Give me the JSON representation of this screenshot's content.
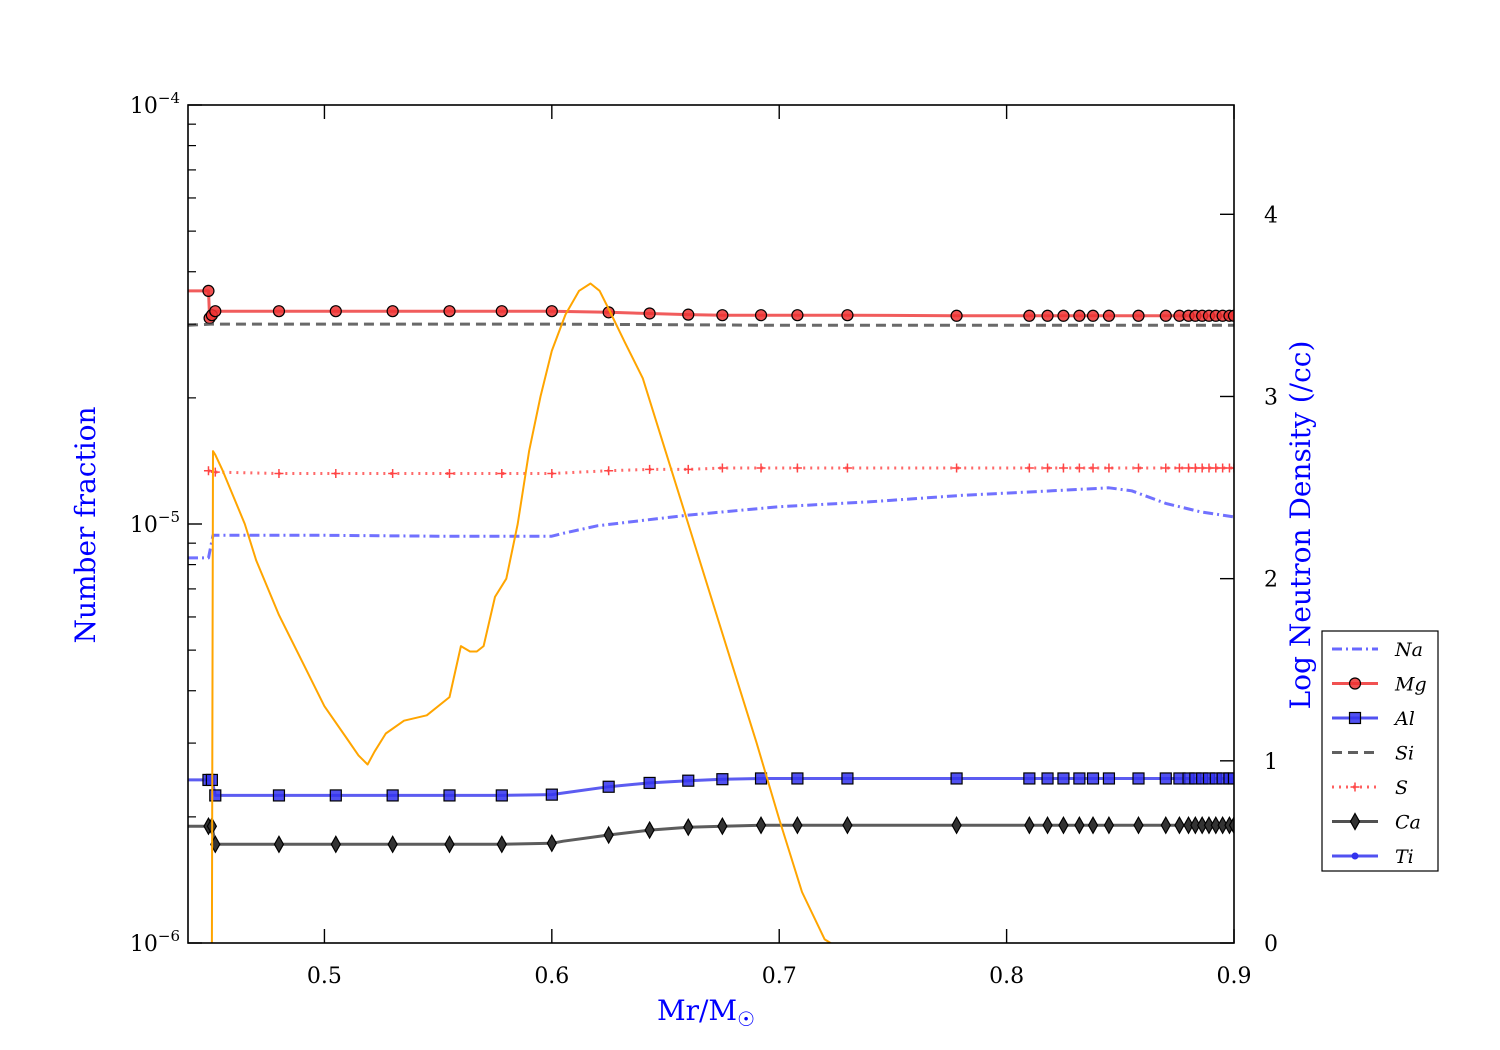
{
  "chart_data": {
    "type": "line",
    "xlabel": "Mr/M",
    "xlabel_symbol": "☉",
    "ylabel_left": "Number fraction",
    "ylabel_right": "Log Neutron Density (/cc)",
    "xlim": [
      0.44,
      0.9
    ],
    "ylim_left": [
      1e-06,
      0.0001
    ],
    "y_left_scale": "log",
    "ylim_right": [
      0,
      4.6
    ],
    "x_ticks": [
      {
        "value": 0.5,
        "label": "0.5"
      },
      {
        "value": 0.6,
        "label": "0.6"
      },
      {
        "value": 0.7,
        "label": "0.7"
      },
      {
        "value": 0.8,
        "label": "0.8"
      },
      {
        "value": 0.9,
        "label": "0.9"
      }
    ],
    "y_left_ticks": [
      {
        "value": 1e-06,
        "base": "10",
        "exp": "−6"
      },
      {
        "value": 1e-05,
        "base": "10",
        "exp": "−5"
      },
      {
        "value": 0.0001,
        "base": "10",
        "exp": "−4"
      }
    ],
    "y_right_ticks": [
      {
        "value": 0,
        "label": "0"
      },
      {
        "value": 1,
        "label": "1"
      },
      {
        "value": 2,
        "label": "2"
      },
      {
        "value": 3,
        "label": "3"
      },
      {
        "value": 4,
        "label": "4"
      }
    ],
    "legend_position": "lower-right, outside plot",
    "grid": false,
    "series": [
      {
        "name": "Na",
        "axis": "left",
        "color": "#4d4dff",
        "style": "dashdot",
        "marker": "none",
        "x": [
          0.44,
          0.449,
          0.451,
          0.48,
          0.5,
          0.55,
          0.6,
          0.605,
          0.62,
          0.64,
          0.66,
          0.7,
          0.74,
          0.78,
          0.82,
          0.845,
          0.855,
          0.87,
          0.885,
          0.9
        ],
        "y": [
          8.3e-06,
          8.3e-06,
          9.4e-06,
          9.4e-06,
          9.4e-06,
          9.35e-06,
          9.35e-06,
          9.5e-06,
          9.9e-06,
          1.02e-05,
          1.05e-05,
          1.1e-05,
          1.13e-05,
          1.17e-05,
          1.2e-05,
          1.22e-05,
          1.2e-05,
          1.12e-05,
          1.07e-05,
          1.04e-05
        ]
      },
      {
        "name": "Mg",
        "axis": "left",
        "color": "#ee3333",
        "style": "solid",
        "marker": "circle",
        "x": [
          0.44,
          0.449,
          0.4495,
          0.4505,
          0.451,
          0.452,
          0.48,
          0.505,
          0.53,
          0.555,
          0.578,
          0.6,
          0.625,
          0.643,
          0.66,
          0.675,
          0.692,
          0.708,
          0.73,
          0.778,
          0.81,
          0.818,
          0.825,
          0.832,
          0.838,
          0.845,
          0.858,
          0.87,
          0.876,
          0.88,
          0.883,
          0.886,
          0.889,
          0.892,
          0.895,
          0.898,
          0.9
        ],
        "y": [
          3.6e-05,
          3.6e-05,
          3.1e-05,
          3.15e-05,
          3.2e-05,
          3.22e-05,
          3.22e-05,
          3.22e-05,
          3.22e-05,
          3.22e-05,
          3.22e-05,
          3.22e-05,
          3.2e-05,
          3.18e-05,
          3.16e-05,
          3.15e-05,
          3.15e-05,
          3.15e-05,
          3.15e-05,
          3.14e-05,
          3.14e-05,
          3.14e-05,
          3.14e-05,
          3.14e-05,
          3.14e-05,
          3.14e-05,
          3.14e-05,
          3.14e-05,
          3.14e-05,
          3.14e-05,
          3.14e-05,
          3.14e-05,
          3.14e-05,
          3.14e-05,
          3.14e-05,
          3.14e-05,
          3.14e-05
        ],
        "markers_x": [
          0.449,
          0.4495,
          0.4505,
          0.452,
          0.48,
          0.505,
          0.53,
          0.555,
          0.578,
          0.6,
          0.625,
          0.643,
          0.66,
          0.675,
          0.692,
          0.708,
          0.73,
          0.778,
          0.81,
          0.818,
          0.825,
          0.832,
          0.838,
          0.845,
          0.858,
          0.87,
          0.876,
          0.88,
          0.883,
          0.886,
          0.889,
          0.892,
          0.895,
          0.898,
          0.9
        ]
      },
      {
        "name": "Al",
        "axis": "left",
        "color": "#3333ee",
        "style": "solid",
        "marker": "square",
        "x": [
          0.44,
          0.449,
          0.4505,
          0.452,
          0.48,
          0.505,
          0.53,
          0.555,
          0.578,
          0.6,
          0.605,
          0.625,
          0.643,
          0.66,
          0.675,
          0.692,
          0.708,
          0.73,
          0.778,
          0.81,
          0.818,
          0.825,
          0.832,
          0.838,
          0.845,
          0.858,
          0.87,
          0.876,
          0.88,
          0.883,
          0.886,
          0.889,
          0.892,
          0.895,
          0.898,
          0.9
        ],
        "y": [
          2.45e-06,
          2.45e-06,
          2.45e-06,
          2.25e-06,
          2.25e-06,
          2.25e-06,
          2.25e-06,
          2.25e-06,
          2.25e-06,
          2.26e-06,
          2.28e-06,
          2.36e-06,
          2.41e-06,
          2.44e-06,
          2.46e-06,
          2.47e-06,
          2.47e-06,
          2.47e-06,
          2.47e-06,
          2.47e-06,
          2.47e-06,
          2.47e-06,
          2.47e-06,
          2.47e-06,
          2.47e-06,
          2.47e-06,
          2.47e-06,
          2.47e-06,
          2.47e-06,
          2.47e-06,
          2.47e-06,
          2.47e-06,
          2.47e-06,
          2.47e-06,
          2.47e-06,
          2.47e-06
        ],
        "markers_x": [
          0.449,
          0.4505,
          0.452,
          0.48,
          0.505,
          0.53,
          0.555,
          0.578,
          0.6,
          0.625,
          0.643,
          0.66,
          0.675,
          0.692,
          0.708,
          0.73,
          0.778,
          0.81,
          0.818,
          0.825,
          0.832,
          0.838,
          0.845,
          0.858,
          0.87,
          0.876,
          0.88,
          0.883,
          0.886,
          0.889,
          0.892,
          0.895,
          0.898,
          0.9
        ]
      },
      {
        "name": "Si",
        "axis": "left",
        "color": "#444444",
        "style": "dashed",
        "marker": "none",
        "x": [
          0.44,
          0.45,
          0.6,
          0.7,
          0.8,
          0.9
        ],
        "y": [
          2.98e-05,
          3e-05,
          3e-05,
          2.98e-05,
          2.98e-05,
          2.98e-05
        ]
      },
      {
        "name": "S",
        "axis": "left",
        "color": "#ff4444",
        "style": "dotted",
        "marker": "plus",
        "x": [
          0.449,
          0.452,
          0.48,
          0.505,
          0.53,
          0.555,
          0.578,
          0.6,
          0.625,
          0.643,
          0.66,
          0.675,
          0.692,
          0.708,
          0.73,
          0.778,
          0.81,
          0.818,
          0.825,
          0.832,
          0.838,
          0.845,
          0.858,
          0.87,
          0.876,
          0.88,
          0.883,
          0.886,
          0.889,
          0.892,
          0.895,
          0.898,
          0.9
        ],
        "y": [
          1.34e-05,
          1.33e-05,
          1.32e-05,
          1.32e-05,
          1.32e-05,
          1.32e-05,
          1.32e-05,
          1.32e-05,
          1.34e-05,
          1.35e-05,
          1.35e-05,
          1.36e-05,
          1.36e-05,
          1.36e-05,
          1.36e-05,
          1.36e-05,
          1.36e-05,
          1.36e-05,
          1.36e-05,
          1.36e-05,
          1.36e-05,
          1.36e-05,
          1.36e-05,
          1.36e-05,
          1.36e-05,
          1.36e-05,
          1.36e-05,
          1.36e-05,
          1.36e-05,
          1.36e-05,
          1.36e-05,
          1.36e-05,
          1.36e-05
        ],
        "markers_x": [
          0.449,
          0.452,
          0.48,
          0.505,
          0.53,
          0.555,
          0.578,
          0.6,
          0.625,
          0.643,
          0.66,
          0.675,
          0.692,
          0.708,
          0.73,
          0.778,
          0.81,
          0.818,
          0.825,
          0.832,
          0.838,
          0.845,
          0.858,
          0.87,
          0.876,
          0.88,
          0.883,
          0.886,
          0.889,
          0.892,
          0.895,
          0.898,
          0.9
        ]
      },
      {
        "name": "Ca",
        "axis": "left",
        "color": "#333333",
        "style": "solid",
        "marker": "diamond",
        "x": [
          0.44,
          0.449,
          0.4505,
          0.452,
          0.48,
          0.505,
          0.53,
          0.555,
          0.578,
          0.6,
          0.605,
          0.625,
          0.643,
          0.66,
          0.675,
          0.692,
          0.708,
          0.73,
          0.778,
          0.81,
          0.818,
          0.825,
          0.832,
          0.838,
          0.845,
          0.858,
          0.87,
          0.876,
          0.88,
          0.883,
          0.886,
          0.889,
          0.892,
          0.895,
          0.898,
          0.9
        ],
        "y": [
          1.9e-06,
          1.9e-06,
          1.9e-06,
          1.72e-06,
          1.72e-06,
          1.72e-06,
          1.72e-06,
          1.72e-06,
          1.72e-06,
          1.73e-06,
          1.75e-06,
          1.81e-06,
          1.86e-06,
          1.89e-06,
          1.9e-06,
          1.91e-06,
          1.91e-06,
          1.91e-06,
          1.91e-06,
          1.91e-06,
          1.91e-06,
          1.91e-06,
          1.91e-06,
          1.91e-06,
          1.91e-06,
          1.91e-06,
          1.91e-06,
          1.91e-06,
          1.91e-06,
          1.91e-06,
          1.91e-06,
          1.91e-06,
          1.91e-06,
          1.91e-06,
          1.91e-06,
          1.91e-06
        ],
        "markers_x": [
          0.449,
          0.4505,
          0.452,
          0.48,
          0.505,
          0.53,
          0.555,
          0.578,
          0.6,
          0.625,
          0.643,
          0.66,
          0.675,
          0.692,
          0.708,
          0.73,
          0.778,
          0.81,
          0.818,
          0.825,
          0.832,
          0.838,
          0.845,
          0.858,
          0.87,
          0.876,
          0.88,
          0.883,
          0.886,
          0.889,
          0.892,
          0.895,
          0.898,
          0.9
        ]
      },
      {
        "name": "Ti",
        "axis": "left",
        "color": "#3333ee",
        "style": "solid",
        "marker": "dot",
        "x": [],
        "y": []
      },
      {
        "name": "",
        "axis": "right",
        "color": "#ffa500",
        "style": "solid",
        "marker": "none",
        "in_legend": false,
        "x": [
          0.4505,
          0.451,
          0.452,
          0.455,
          0.46,
          0.465,
          0.47,
          0.48,
          0.49,
          0.5,
          0.51,
          0.515,
          0.519,
          0.522,
          0.527,
          0.535,
          0.545,
          0.555,
          0.56,
          0.564,
          0.567,
          0.57,
          0.575,
          0.58,
          0.585,
          0.59,
          0.595,
          0.6,
          0.606,
          0.612,
          0.617,
          0.621,
          0.625,
          0.632,
          0.64,
          0.65,
          0.66,
          0.67,
          0.68,
          0.69,
          0.7,
          0.71,
          0.72,
          0.729
        ],
        "y": [
          0.0,
          2.7,
          2.68,
          2.6,
          2.45,
          2.3,
          2.1,
          1.8,
          1.55,
          1.3,
          1.12,
          1.03,
          0.98,
          1.05,
          1.15,
          1.22,
          1.25,
          1.35,
          1.63,
          1.6,
          1.6,
          1.63,
          1.9,
          2.0,
          2.3,
          2.7,
          3.0,
          3.25,
          3.45,
          3.58,
          3.62,
          3.58,
          3.48,
          3.3,
          3.1,
          2.7,
          2.3,
          1.9,
          1.5,
          1.1,
          0.68,
          0.28,
          0.02,
          -0.05
        ]
      }
    ]
  }
}
